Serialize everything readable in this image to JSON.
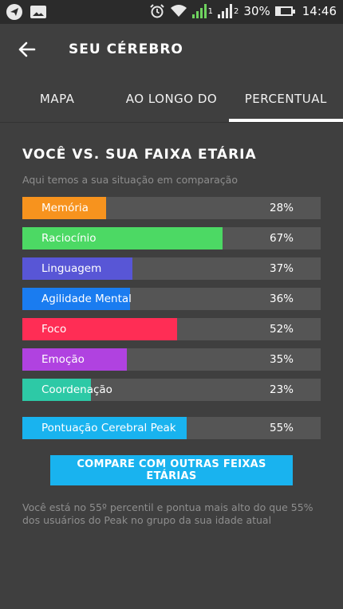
{
  "status_bar": {
    "battery": "30%",
    "time": "14:46",
    "sim1": "1",
    "sim2": "2",
    "icons": [
      "telegram-icon",
      "gallery-icon",
      "alarm-icon",
      "wifi-icon",
      "signal-icon",
      "battery-icon"
    ]
  },
  "toolbar": {
    "title": "SEU CÉREBRO",
    "back_icon": "arrow-left-icon"
  },
  "tabs": [
    {
      "label": "MAPA",
      "active": false
    },
    {
      "label": "AO LONGO DO",
      "active": false
    },
    {
      "label": "PERCENTUAL",
      "active": true
    }
  ],
  "main": {
    "heading": "VOCÊ VS. SUA FAIXA ETÁRIA",
    "subtitle": "Aqui temos a sua situação em comparação",
    "bars": [
      {
        "label": "Memória",
        "percent": 28,
        "percent_text": "28%",
        "color": "#f7931e"
      },
      {
        "label": "Raciocínio",
        "percent": 67,
        "percent_text": "67%",
        "color": "#4cd964"
      },
      {
        "label": "Linguagem",
        "percent": 37,
        "percent_text": "37%",
        "color": "#5856d6"
      },
      {
        "label": "Agilidade Mental",
        "percent": 36,
        "percent_text": "36%",
        "color": "#1a7cf0"
      },
      {
        "label": "Foco",
        "percent": 52,
        "percent_text": "52%",
        "color": "#ff2d55"
      },
      {
        "label": "Emoção",
        "percent": 35,
        "percent_text": "35%",
        "color": "#b042e0"
      },
      {
        "label": "Coordenação",
        "percent": 23,
        "percent_text": "23%",
        "color": "#2dc9a6"
      }
    ],
    "summary_bar": {
      "label": "Pontuação Cerebral Peak",
      "percent": 55,
      "percent_text": "55%",
      "color": "#19b3ef"
    },
    "compare_button": "COMPARE COM OUTRAS FEIXAS ETÁRIAS",
    "footer_text": "Você está no 55º percentil e pontua mais alto do que 55% dos usuários do Peak no grupo da sua idade atual"
  }
}
